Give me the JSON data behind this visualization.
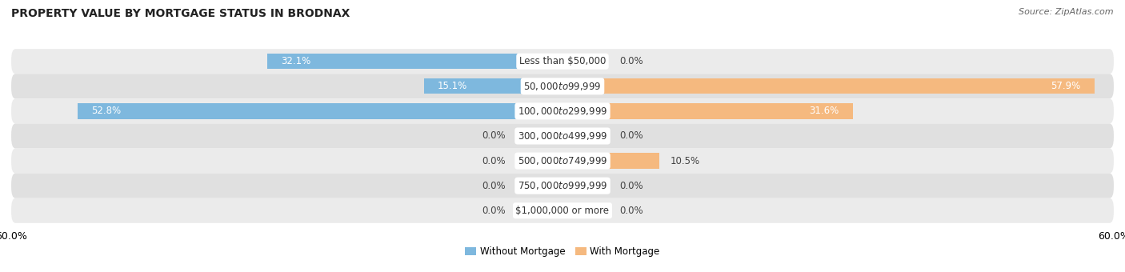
{
  "title": "PROPERTY VALUE BY MORTGAGE STATUS IN BRODNAX",
  "source": "Source: ZipAtlas.com",
  "categories": [
    "Less than $50,000",
    "$50,000 to $99,999",
    "$100,000 to $299,999",
    "$300,000 to $499,999",
    "$500,000 to $749,999",
    "$750,000 to $999,999",
    "$1,000,000 or more"
  ],
  "without_mortgage": [
    32.1,
    15.1,
    52.8,
    0.0,
    0.0,
    0.0,
    0.0
  ],
  "with_mortgage": [
    0.0,
    57.9,
    31.6,
    0.0,
    10.5,
    0.0,
    0.0
  ],
  "color_without": "#7eb8de",
  "color_without_stub": "#b8d8ef",
  "color_with": "#f5b97f",
  "color_with_stub": "#f9d9b3",
  "xlim": 60.0,
  "stub_size": 5.0,
  "bar_height": 0.62,
  "bg_color_odd": "#ebebeb",
  "bg_color_even": "#e0e0e0",
  "title_fontsize": 10,
  "source_fontsize": 8,
  "axis_tick_fontsize": 9,
  "bar_label_fontsize": 8.5,
  "category_fontsize": 8.5,
  "legend_fontsize": 8.5
}
